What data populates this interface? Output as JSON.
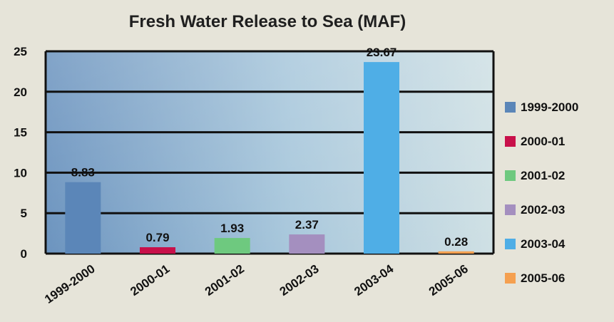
{
  "chart_data": {
    "type": "bar",
    "title": "Fresh Water Release to Sea (MAF)",
    "xlabel": "",
    "ylabel": "",
    "categories": [
      "1999-2000",
      "2000-01",
      "2001-02",
      "2002-03",
      "2003-04",
      "2005-06"
    ],
    "values": [
      8.83,
      0.79,
      1.93,
      2.37,
      23.67,
      0.28
    ],
    "value_labels": [
      "8.83",
      "0.79",
      "1.93",
      "2.37",
      "23.67",
      "0.28"
    ],
    "colors": [
      "#5b86b8",
      "#c8104a",
      "#6ec97f",
      "#a48fbf",
      "#4faee6",
      "#f5a050"
    ],
    "ylim": [
      0,
      25
    ],
    "yticks": [
      "0",
      "5",
      "10",
      "15",
      "20",
      "25"
    ],
    "grid": true,
    "legend_position": "right"
  }
}
